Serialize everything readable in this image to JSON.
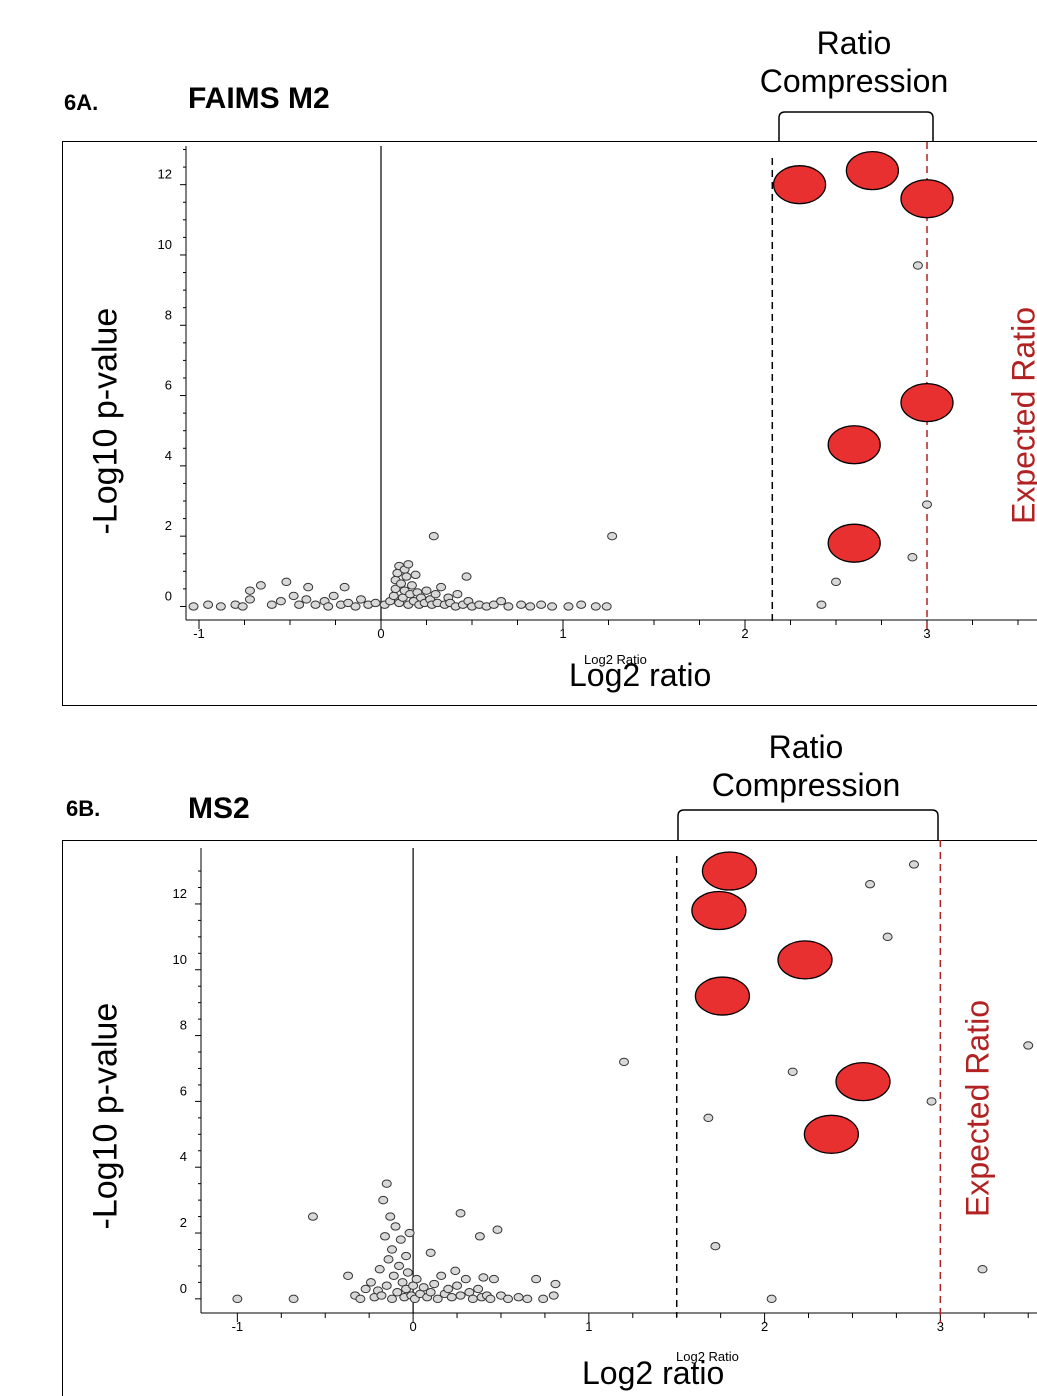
{
  "colors": {
    "highlight": "#e83030",
    "point": "#d8d8d8",
    "expected": "#b22222"
  },
  "chart_data": [
    {
      "type": "scatter",
      "panel_label": "6A.",
      "title": "FAIMS M2",
      "xlabel": "Log2 ratio",
      "inner_xlabel": "Log2 Ratio",
      "ylabel": "-Log10 p-value",
      "xlim": [
        -1,
        3.5
      ],
      "ylim": [
        -0.3,
        13.1
      ],
      "xticks": [
        "-1",
        "0",
        "1",
        "2",
        "3"
      ],
      "yticks": [
        "0",
        "2",
        "4",
        "6",
        "8",
        "10",
        "12"
      ],
      "ratio_compression_label": "Ratio Compression",
      "ratio_compression_range": [
        2.15,
        3.0
      ],
      "expected_ratio_label": "Expected Ratio",
      "expected_ratio": 3.0,
      "highlighted": [
        {
          "x": 2.3,
          "y": 12.0
        },
        {
          "x": 2.7,
          "y": 12.4
        },
        {
          "x": 3.0,
          "y": 11.6
        },
        {
          "x": 3.0,
          "y": 5.8
        },
        {
          "x": 2.6,
          "y": 4.6
        },
        {
          "x": 2.6,
          "y": 1.8
        }
      ],
      "outliers": [
        {
          "x": 2.95,
          "y": 9.7
        },
        {
          "x": 3.0,
          "y": 2.9
        },
        {
          "x": 2.92,
          "y": 1.4
        },
        {
          "x": 2.5,
          "y": 0.7
        },
        {
          "x": 2.42,
          "y": 0.05
        },
        {
          "x": 0.29,
          "y": 2.0
        },
        {
          "x": 1.27,
          "y": 2.0
        },
        {
          "x": 0.47,
          "y": 0.85
        }
      ],
      "cluster": [
        {
          "x": -1.03,
          "y": 0.0
        },
        {
          "x": -0.95,
          "y": 0.05
        },
        {
          "x": -0.88,
          "y": 0.0
        },
        {
          "x": -0.8,
          "y": 0.05
        },
        {
          "x": -0.76,
          "y": 0.0
        },
        {
          "x": -0.72,
          "y": 0.2
        },
        {
          "x": -0.72,
          "y": 0.45
        },
        {
          "x": -0.66,
          "y": 0.6
        },
        {
          "x": -0.6,
          "y": 0.05
        },
        {
          "x": -0.55,
          "y": 0.15
        },
        {
          "x": -0.52,
          "y": 0.7
        },
        {
          "x": -0.48,
          "y": 0.3
        },
        {
          "x": -0.45,
          "y": 0.05
        },
        {
          "x": -0.41,
          "y": 0.2
        },
        {
          "x": -0.4,
          "y": 0.55
        },
        {
          "x": -0.36,
          "y": 0.05
        },
        {
          "x": -0.31,
          "y": 0.15
        },
        {
          "x": -0.29,
          "y": 0.0
        },
        {
          "x": -0.26,
          "y": 0.3
        },
        {
          "x": -0.22,
          "y": 0.05
        },
        {
          "x": -0.2,
          "y": 0.55
        },
        {
          "x": -0.18,
          "y": 0.1
        },
        {
          "x": -0.14,
          "y": 0.0
        },
        {
          "x": -0.11,
          "y": 0.2
        },
        {
          "x": -0.07,
          "y": 0.05
        },
        {
          "x": -0.03,
          "y": 0.1
        },
        {
          "x": 0.02,
          "y": 0.05
        },
        {
          "x": 0.05,
          "y": 0.15
        },
        {
          "x": 0.07,
          "y": 0.3
        },
        {
          "x": 0.08,
          "y": 0.5
        },
        {
          "x": 0.08,
          "y": 0.75
        },
        {
          "x": 0.09,
          "y": 0.95
        },
        {
          "x": 0.1,
          "y": 1.15
        },
        {
          "x": 0.1,
          "y": 0.1
        },
        {
          "x": 0.11,
          "y": 0.65
        },
        {
          "x": 0.12,
          "y": 0.25
        },
        {
          "x": 0.13,
          "y": 1.05
        },
        {
          "x": 0.13,
          "y": 0.45
        },
        {
          "x": 0.14,
          "y": 0.85
        },
        {
          "x": 0.15,
          "y": 1.2
        },
        {
          "x": 0.15,
          "y": 0.05
        },
        {
          "x": 0.16,
          "y": 0.35
        },
        {
          "x": 0.17,
          "y": 0.6
        },
        {
          "x": 0.18,
          "y": 0.15
        },
        {
          "x": 0.19,
          "y": 0.9
        },
        {
          "x": 0.2,
          "y": 0.4
        },
        {
          "x": 0.21,
          "y": 0.05
        },
        {
          "x": 0.22,
          "y": 0.25
        },
        {
          "x": 0.24,
          "y": 0.1
        },
        {
          "x": 0.25,
          "y": 0.45
        },
        {
          "x": 0.27,
          "y": 0.2
        },
        {
          "x": 0.28,
          "y": 0.05
        },
        {
          "x": 0.3,
          "y": 0.35
        },
        {
          "x": 0.31,
          "y": 0.1
        },
        {
          "x": 0.33,
          "y": 0.55
        },
        {
          "x": 0.35,
          "y": 0.05
        },
        {
          "x": 0.37,
          "y": 0.25
        },
        {
          "x": 0.38,
          "y": 0.1
        },
        {
          "x": 0.41,
          "y": 0.0
        },
        {
          "x": 0.42,
          "y": 0.35
        },
        {
          "x": 0.45,
          "y": 0.05
        },
        {
          "x": 0.48,
          "y": 0.15
        },
        {
          "x": 0.5,
          "y": 0.0
        },
        {
          "x": 0.54,
          "y": 0.05
        },
        {
          "x": 0.58,
          "y": 0.0
        },
        {
          "x": 0.62,
          "y": 0.05
        },
        {
          "x": 0.66,
          "y": 0.15
        },
        {
          "x": 0.7,
          "y": 0.0
        },
        {
          "x": 0.77,
          "y": 0.05
        },
        {
          "x": 0.82,
          "y": 0.0
        },
        {
          "x": 0.88,
          "y": 0.05
        },
        {
          "x": 0.94,
          "y": 0.0
        },
        {
          "x": 1.03,
          "y": 0.0
        },
        {
          "x": 1.1,
          "y": 0.05
        },
        {
          "x": 1.18,
          "y": 0.0
        },
        {
          "x": 1.24,
          "y": 0.0
        }
      ]
    },
    {
      "type": "scatter",
      "panel_label": "6B.",
      "title": "MS2",
      "xlabel": "Log2 ratio",
      "inner_xlabel": "Log2 Ratio",
      "ylabel": "-Log10 p-value",
      "xlim": [
        -1.15,
        3.55
      ],
      "ylim": [
        -0.4,
        13.7
      ],
      "xticks": [
        "-1",
        "0",
        "1",
        "2",
        "3"
      ],
      "yticks": [
        "0",
        "2",
        "4",
        "6",
        "8",
        "10",
        "12"
      ],
      "ratio_compression_label": "Ratio Compression",
      "ratio_compression_range": [
        1.5,
        3.0
      ],
      "expected_ratio_label": "Expected Ratio",
      "expected_ratio": 3.0,
      "highlighted": [
        {
          "x": 1.8,
          "y": 13.0
        },
        {
          "x": 1.74,
          "y": 11.8
        },
        {
          "x": 2.23,
          "y": 10.3
        },
        {
          "x": 1.76,
          "y": 9.2
        },
        {
          "x": 2.56,
          "y": 6.6
        },
        {
          "x": 2.38,
          "y": 5.0
        }
      ],
      "outliers": [
        {
          "x": 2.85,
          "y": 13.2
        },
        {
          "x": 2.6,
          "y": 12.6
        },
        {
          "x": 2.7,
          "y": 11.0
        },
        {
          "x": 3.5,
          "y": 7.7
        },
        {
          "x": 2.16,
          "y": 6.9
        },
        {
          "x": 2.95,
          "y": 6.0
        },
        {
          "x": 1.68,
          "y": 5.5
        },
        {
          "x": 1.2,
          "y": 7.2
        },
        {
          "x": 1.72,
          "y": 1.6
        },
        {
          "x": 3.24,
          "y": 0.9
        },
        {
          "x": 2.04,
          "y": 0.0
        }
      ],
      "cluster": [
        {
          "x": -1.0,
          "y": 0.0
        },
        {
          "x": -0.68,
          "y": 0.0
        },
        {
          "x": -0.57,
          "y": 2.5
        },
        {
          "x": -0.37,
          "y": 0.7
        },
        {
          "x": -0.33,
          "y": 0.1
        },
        {
          "x": -0.3,
          "y": 0.0
        },
        {
          "x": -0.27,
          "y": 0.3
        },
        {
          "x": -0.24,
          "y": 0.5
        },
        {
          "x": -0.22,
          "y": 0.05
        },
        {
          "x": -0.2,
          "y": 0.25
        },
        {
          "x": -0.19,
          "y": 0.9
        },
        {
          "x": -0.18,
          "y": 0.1
        },
        {
          "x": -0.17,
          "y": 3.0
        },
        {
          "x": -0.16,
          "y": 1.9
        },
        {
          "x": -0.15,
          "y": 3.5
        },
        {
          "x": -0.15,
          "y": 0.4
        },
        {
          "x": -0.14,
          "y": 1.2
        },
        {
          "x": -0.13,
          "y": 2.5
        },
        {
          "x": -0.12,
          "y": 0.0
        },
        {
          "x": -0.12,
          "y": 1.5
        },
        {
          "x": -0.11,
          "y": 0.7
        },
        {
          "x": -0.1,
          "y": 2.2
        },
        {
          "x": -0.09,
          "y": 0.2
        },
        {
          "x": -0.08,
          "y": 1.0
        },
        {
          "x": -0.07,
          "y": 1.8
        },
        {
          "x": -0.06,
          "y": 0.5
        },
        {
          "x": -0.05,
          "y": 0.05
        },
        {
          "x": -0.04,
          "y": 0.3
        },
        {
          "x": -0.04,
          "y": 1.3
        },
        {
          "x": -0.03,
          "y": 0.8
        },
        {
          "x": -0.02,
          "y": 2.0
        },
        {
          "x": -0.01,
          "y": 0.1
        },
        {
          "x": 0.0,
          "y": 0.4
        },
        {
          "x": 0.01,
          "y": 0.0
        },
        {
          "x": 0.02,
          "y": 0.6
        },
        {
          "x": 0.04,
          "y": 0.15
        },
        {
          "x": 0.06,
          "y": 0.35
        },
        {
          "x": 0.08,
          "y": 0.05
        },
        {
          "x": 0.1,
          "y": 0.2
        },
        {
          "x": 0.1,
          "y": 1.4
        },
        {
          "x": 0.12,
          "y": 0.45
        },
        {
          "x": 0.14,
          "y": 0.0
        },
        {
          "x": 0.16,
          "y": 0.7
        },
        {
          "x": 0.18,
          "y": 0.15
        },
        {
          "x": 0.2,
          "y": 0.3
        },
        {
          "x": 0.22,
          "y": 0.05
        },
        {
          "x": 0.24,
          "y": 0.85
        },
        {
          "x": 0.25,
          "y": 0.4
        },
        {
          "x": 0.27,
          "y": 0.1
        },
        {
          "x": 0.27,
          "y": 2.6
        },
        {
          "x": 0.3,
          "y": 0.6
        },
        {
          "x": 0.32,
          "y": 0.2
        },
        {
          "x": 0.34,
          "y": 0.0
        },
        {
          "x": 0.37,
          "y": 0.3
        },
        {
          "x": 0.39,
          "y": 0.05
        },
        {
          "x": 0.38,
          "y": 1.9
        },
        {
          "x": 0.4,
          "y": 0.65
        },
        {
          "x": 0.42,
          "y": 0.1
        },
        {
          "x": 0.44,
          "y": 0.0
        },
        {
          "x": 0.46,
          "y": 0.6
        },
        {
          "x": 0.48,
          "y": 2.1
        },
        {
          "x": 0.5,
          "y": 0.1
        },
        {
          "x": 0.54,
          "y": 0.0
        },
        {
          "x": 0.6,
          "y": 0.05
        },
        {
          "x": 0.65,
          "y": 0.0
        },
        {
          "x": 0.7,
          "y": 0.6
        },
        {
          "x": 0.74,
          "y": 0.0
        },
        {
          "x": 0.8,
          "y": 0.1
        },
        {
          "x": 0.81,
          "y": 0.45
        }
      ]
    }
  ]
}
